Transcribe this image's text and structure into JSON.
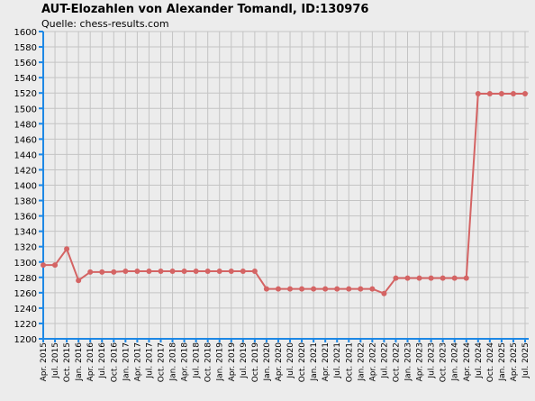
{
  "chart_data": {
    "type": "line",
    "title": "AUT-Elozahlen von Alexander Tomandl, ID:130976",
    "subtitle": "Quelle: chess-results.com",
    "categories": [
      "Apr. 2015",
      "Jul. 2015",
      "Oct. 2015",
      "Jan. 2016",
      "Apr. 2016",
      "Jul. 2016",
      "Oct. 2016",
      "Jan. 2017",
      "Apr. 2017",
      "Jul. 2017",
      "Oct. 2017",
      "Jan. 2018",
      "Apr. 2018",
      "Jul. 2018",
      "Oct. 2018",
      "Jan. 2019",
      "Apr. 2019",
      "Jul. 2019",
      "Oct. 2019",
      "Jan. 2020",
      "Apr. 2020",
      "Jul. 2020",
      "Oct. 2020",
      "Jan. 2021",
      "Apr. 2021",
      "Jul. 2021",
      "Oct. 2021",
      "Jan. 2022",
      "Apr. 2022",
      "Jul. 2022",
      "Oct. 2022",
      "Jan. 2023",
      "Apr. 2023",
      "Jul. 2023",
      "Oct. 2023",
      "Jan. 2024",
      "Apr. 2024",
      "Jul. 2024",
      "Oct. 2024",
      "Jan. 2025",
      "Apr. 2025",
      "Jul. 2025"
    ],
    "values": [
      1296,
      1296,
      1317,
      1276,
      1287,
      1287,
      1287,
      1288,
      1288,
      1288,
      1288,
      1288,
      1288,
      1288,
      1288,
      1288,
      1288,
      1288,
      1288,
      1265,
      1265,
      1265,
      1265,
      1265,
      1265,
      1265,
      1265,
      1265,
      1265,
      1259,
      1279,
      1279,
      1279,
      1279,
      1279,
      1279,
      1279,
      1519,
      1519,
      1519,
      1519,
      1519
    ],
    "color": "#d46464",
    "ylim": [
      1200,
      1600
    ],
    "yticks": [
      1200,
      1220,
      1240,
      1260,
      1280,
      1300,
      1320,
      1340,
      1360,
      1380,
      1400,
      1420,
      1440,
      1460,
      1480,
      1500,
      1520,
      1540,
      1560,
      1580,
      1600
    ],
    "grid": true
  }
}
